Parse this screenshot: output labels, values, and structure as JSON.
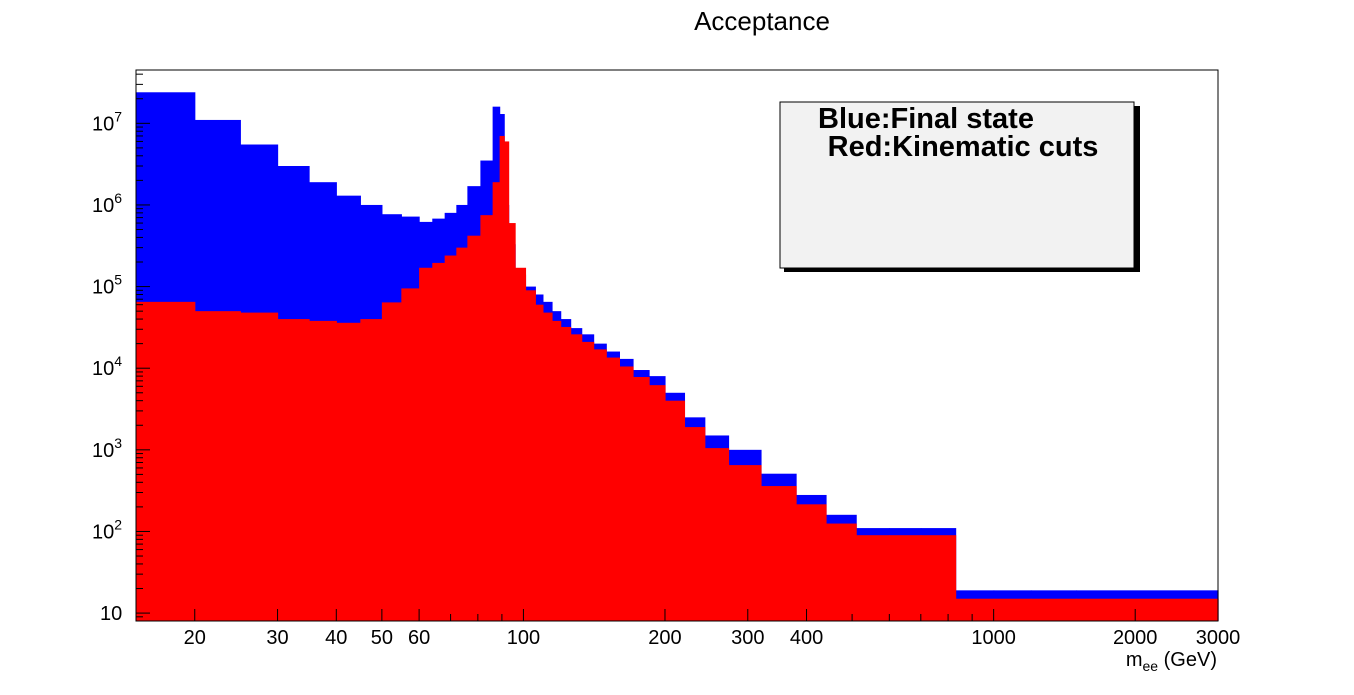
{
  "chart_data": {
    "type": "bar",
    "title": "Acceptance",
    "xlabel_main": "m",
    "xlabel_sub": "ee",
    "xlabel_unit": " (GeV)",
    "x_scale": "log",
    "y_scale": "log",
    "xlim": [
      15,
      3000
    ],
    "ylim": [
      8,
      45000000
    ],
    "x_tick_labels": [
      "20",
      "30",
      "40",
      "50",
      "60",
      "100",
      "200",
      "300",
      "400",
      "1000",
      "2000",
      "3000"
    ],
    "x_tick_values": [
      20,
      30,
      40,
      50,
      60,
      100,
      200,
      300,
      400,
      1000,
      2000,
      3000
    ],
    "y_tick_labels": [
      {
        "base": "10",
        "exp": ""
      },
      {
        "base": "10",
        "exp": "2"
      },
      {
        "base": "10",
        "exp": "3"
      },
      {
        "base": "10",
        "exp": "4"
      },
      {
        "base": "10",
        "exp": "5"
      },
      {
        "base": "10",
        "exp": "6"
      },
      {
        "base": "10",
        "exp": "7"
      }
    ],
    "y_tick_values": [
      10,
      100,
      1000,
      10000,
      100000,
      1000000,
      10000000
    ],
    "legend": {
      "position": "top-right",
      "lines": [
        "Blue:Final state",
        "Red:Kinematic cuts"
      ]
    },
    "colors": {
      "final_state": "#0000ff",
      "kinematic_cuts": "#ff0000"
    },
    "bin_edges": [
      15,
      20,
      25,
      30,
      35,
      40,
      45,
      50,
      55,
      60,
      64,
      68,
      72,
      76,
      81,
      86,
      89,
      91,
      93,
      96,
      101,
      106,
      110,
      115,
      120,
      126,
      133,
      141,
      150,
      160,
      171,
      185,
      200,
      220,
      243,
      273,
      320,
      380,
      440,
      510,
      600,
      700,
      830,
      1000,
      1200,
      1500,
      3000
    ],
    "series": [
      {
        "name": "Final state",
        "values": [
          24000000,
          11000000,
          5500000,
          3000000,
          1900000,
          1300000,
          1000000,
          770000,
          720000,
          620000,
          680000,
          800000,
          1000000,
          1700000,
          3500000,
          16000000,
          13000000,
          1000000,
          330000,
          140000,
          100000,
          80000,
          65000,
          50000,
          40000,
          31000,
          26000,
          20000,
          16000,
          13000,
          9500,
          8000,
          5000,
          2500,
          1500,
          1000,
          510,
          280,
          160,
          110,
          110,
          110,
          19,
          19,
          19,
          19
        ]
      },
      {
        "name": "Kinematic cuts",
        "values": [
          65000,
          50000,
          48000,
          40000,
          38000,
          36000,
          40000,
          64000,
          95000,
          170000,
          195000,
          240000,
          300000,
          420000,
          750000,
          1900000,
          7000000,
          6000000,
          600000,
          170000,
          90000,
          60000,
          48000,
          38000,
          32000,
          26000,
          21000,
          17000,
          13500,
          10500,
          7800,
          6200,
          4000,
          1900,
          1050,
          650,
          360,
          215,
          125,
          90,
          90,
          90,
          15,
          15,
          15,
          15
        ]
      }
    ]
  }
}
